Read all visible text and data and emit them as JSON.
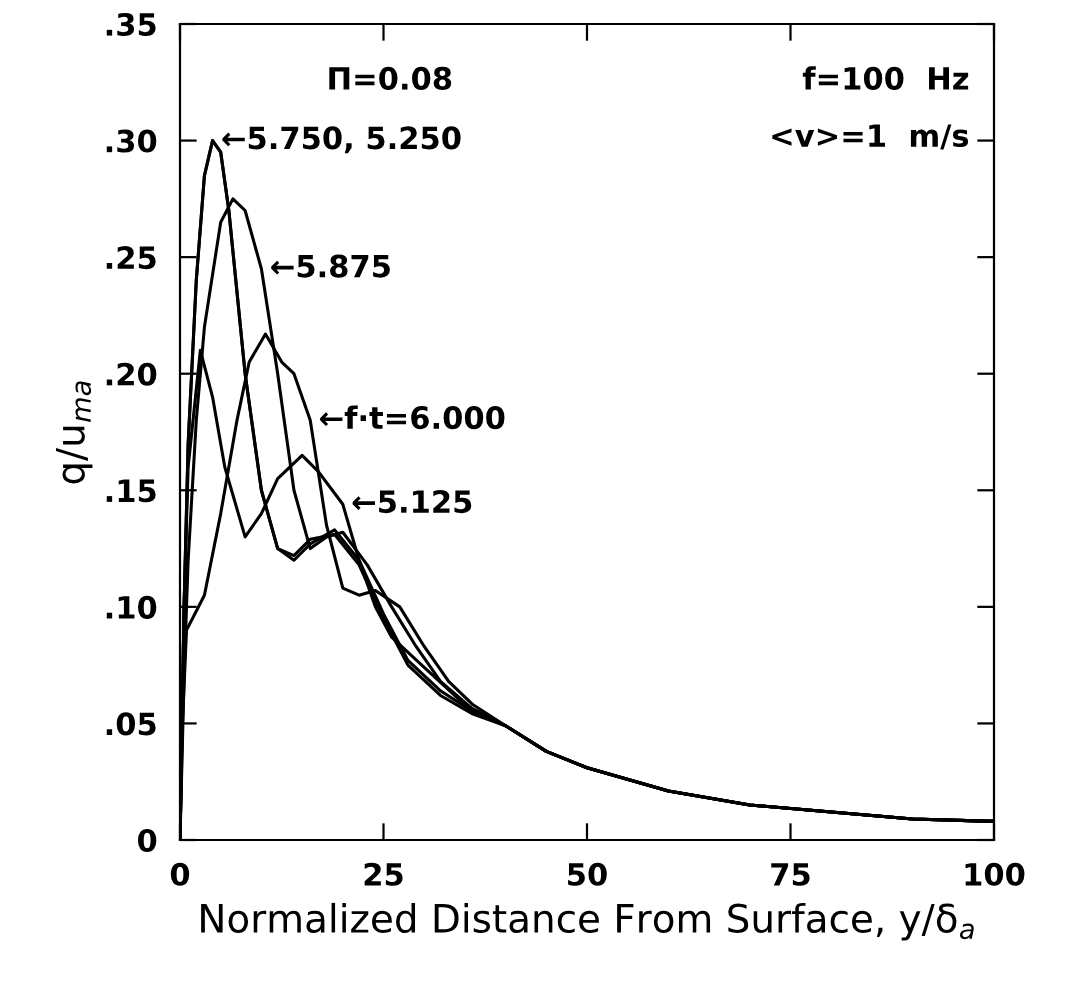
{
  "chart_data": {
    "type": "line",
    "xlabel": "Normalized Distance From Surface, y/δ$_{a}$",
    "ylabel": "q/u$_{ma}$",
    "xlim": [
      0,
      100
    ],
    "ylim": [
      0,
      0.35
    ],
    "xticks": [
      0,
      25,
      50,
      75,
      100
    ],
    "yticks": [
      0,
      {
        "value": 0.05,
        "label": ".05"
      },
      {
        "value": 0.1,
        "label": ".10"
      },
      {
        "value": 0.15,
        "label": ".15"
      },
      {
        "value": 0.2,
        "label": ".20"
      },
      {
        "value": 0.25,
        "label": ".25"
      },
      {
        "value": 0.3,
        "label": ".30"
      },
      {
        "value": 0.35,
        "label": ".35"
      }
    ],
    "grid": false,
    "marker": "none",
    "line_style": "solid",
    "series": [
      {
        "color": "#000000",
        "x": [
          0,
          0.5,
          1,
          2.5,
          4,
          5.5,
          8,
          10,
          12,
          15,
          17,
          20,
          22,
          24,
          26,
          30,
          35,
          40,
          45,
          50,
          60,
          70,
          80,
          90,
          100
        ],
        "values": [
          0,
          0.1,
          0.16,
          0.21,
          0.19,
          0.16,
          0.13,
          0.14,
          0.155,
          0.165,
          0.158,
          0.144,
          0.12,
          0.1,
          0.087,
          0.074,
          0.058,
          0.049,
          0.038,
          0.031,
          0.021,
          0.015,
          0.012,
          0.009,
          0.008
        ]
      },
      {
        "color": "#000000",
        "x": [
          0,
          0.3,
          0.8,
          3,
          5,
          7,
          8.5,
          10.5,
          12.5,
          14,
          16,
          18,
          20,
          22,
          24,
          27,
          30,
          33,
          36,
          40,
          45,
          50,
          60,
          70,
          80,
          90,
          100
        ],
        "values": [
          0,
          0.05,
          0.09,
          0.105,
          0.14,
          0.18,
          0.205,
          0.217,
          0.205,
          0.2,
          0.18,
          0.135,
          0.108,
          0.105,
          0.107,
          0.1,
          0.083,
          0.068,
          0.058,
          0.049,
          0.038,
          0.031,
          0.021,
          0.015,
          0.012,
          0.009,
          0.008
        ]
      },
      {
        "color": "#000000",
        "x": [
          0,
          0.5,
          1,
          2,
          3,
          4,
          5,
          6,
          8,
          10,
          12,
          14,
          16,
          19,
          22,
          25,
          28,
          32,
          36,
          40,
          45,
          50,
          60,
          70,
          80,
          90,
          100
        ],
        "values": [
          0,
          0.1,
          0.17,
          0.24,
          0.285,
          0.3,
          0.295,
          0.27,
          0.2,
          0.15,
          0.125,
          0.12,
          0.127,
          0.133,
          0.12,
          0.097,
          0.077,
          0.064,
          0.055,
          0.049,
          0.038,
          0.031,
          0.021,
          0.015,
          0.012,
          0.009,
          0.008
        ]
      },
      {
        "color": "#000000",
        "x": [
          0,
          0.5,
          1,
          2,
          3,
          4,
          5,
          6,
          8,
          10,
          12,
          14,
          16,
          19,
          22,
          25,
          28,
          32,
          36,
          40,
          45,
          50,
          60,
          70,
          80,
          90,
          100
        ],
        "values": [
          0,
          0.1,
          0.17,
          0.24,
          0.285,
          0.3,
          0.295,
          0.27,
          0.2,
          0.15,
          0.125,
          0.122,
          0.129,
          0.131,
          0.118,
          0.095,
          0.075,
          0.062,
          0.054,
          0.049,
          0.038,
          0.031,
          0.021,
          0.015,
          0.012,
          0.009,
          0.008
        ]
      },
      {
        "color": "#000000",
        "x": [
          0,
          0.5,
          1,
          2,
          3,
          5,
          6.5,
          8,
          10,
          12,
          14,
          16,
          18,
          20,
          23,
          26,
          29,
          32,
          36,
          40,
          45,
          50,
          60,
          70,
          80,
          90,
          100
        ],
        "values": [
          0,
          0.07,
          0.12,
          0.18,
          0.22,
          0.265,
          0.275,
          0.27,
          0.245,
          0.2,
          0.15,
          0.125,
          0.13,
          0.132,
          0.118,
          0.1,
          0.083,
          0.068,
          0.056,
          0.049,
          0.038,
          0.031,
          0.021,
          0.015,
          0.012,
          0.009,
          0.008
        ]
      }
    ],
    "annotations": [
      {
        "text": "←5.750, 5.250",
        "x": 4,
        "y": 0.3
      },
      {
        "text": "←5.875",
        "x": 10,
        "y": 0.245
      },
      {
        "text": "←f·t=6.000",
        "x": 16,
        "y": 0.18
      },
      {
        "text": "←5.125",
        "x": 20,
        "y": 0.144
      },
      "Π=0.08",
      "f=100  Hz",
      "<v>=1  m/s"
    ]
  }
}
